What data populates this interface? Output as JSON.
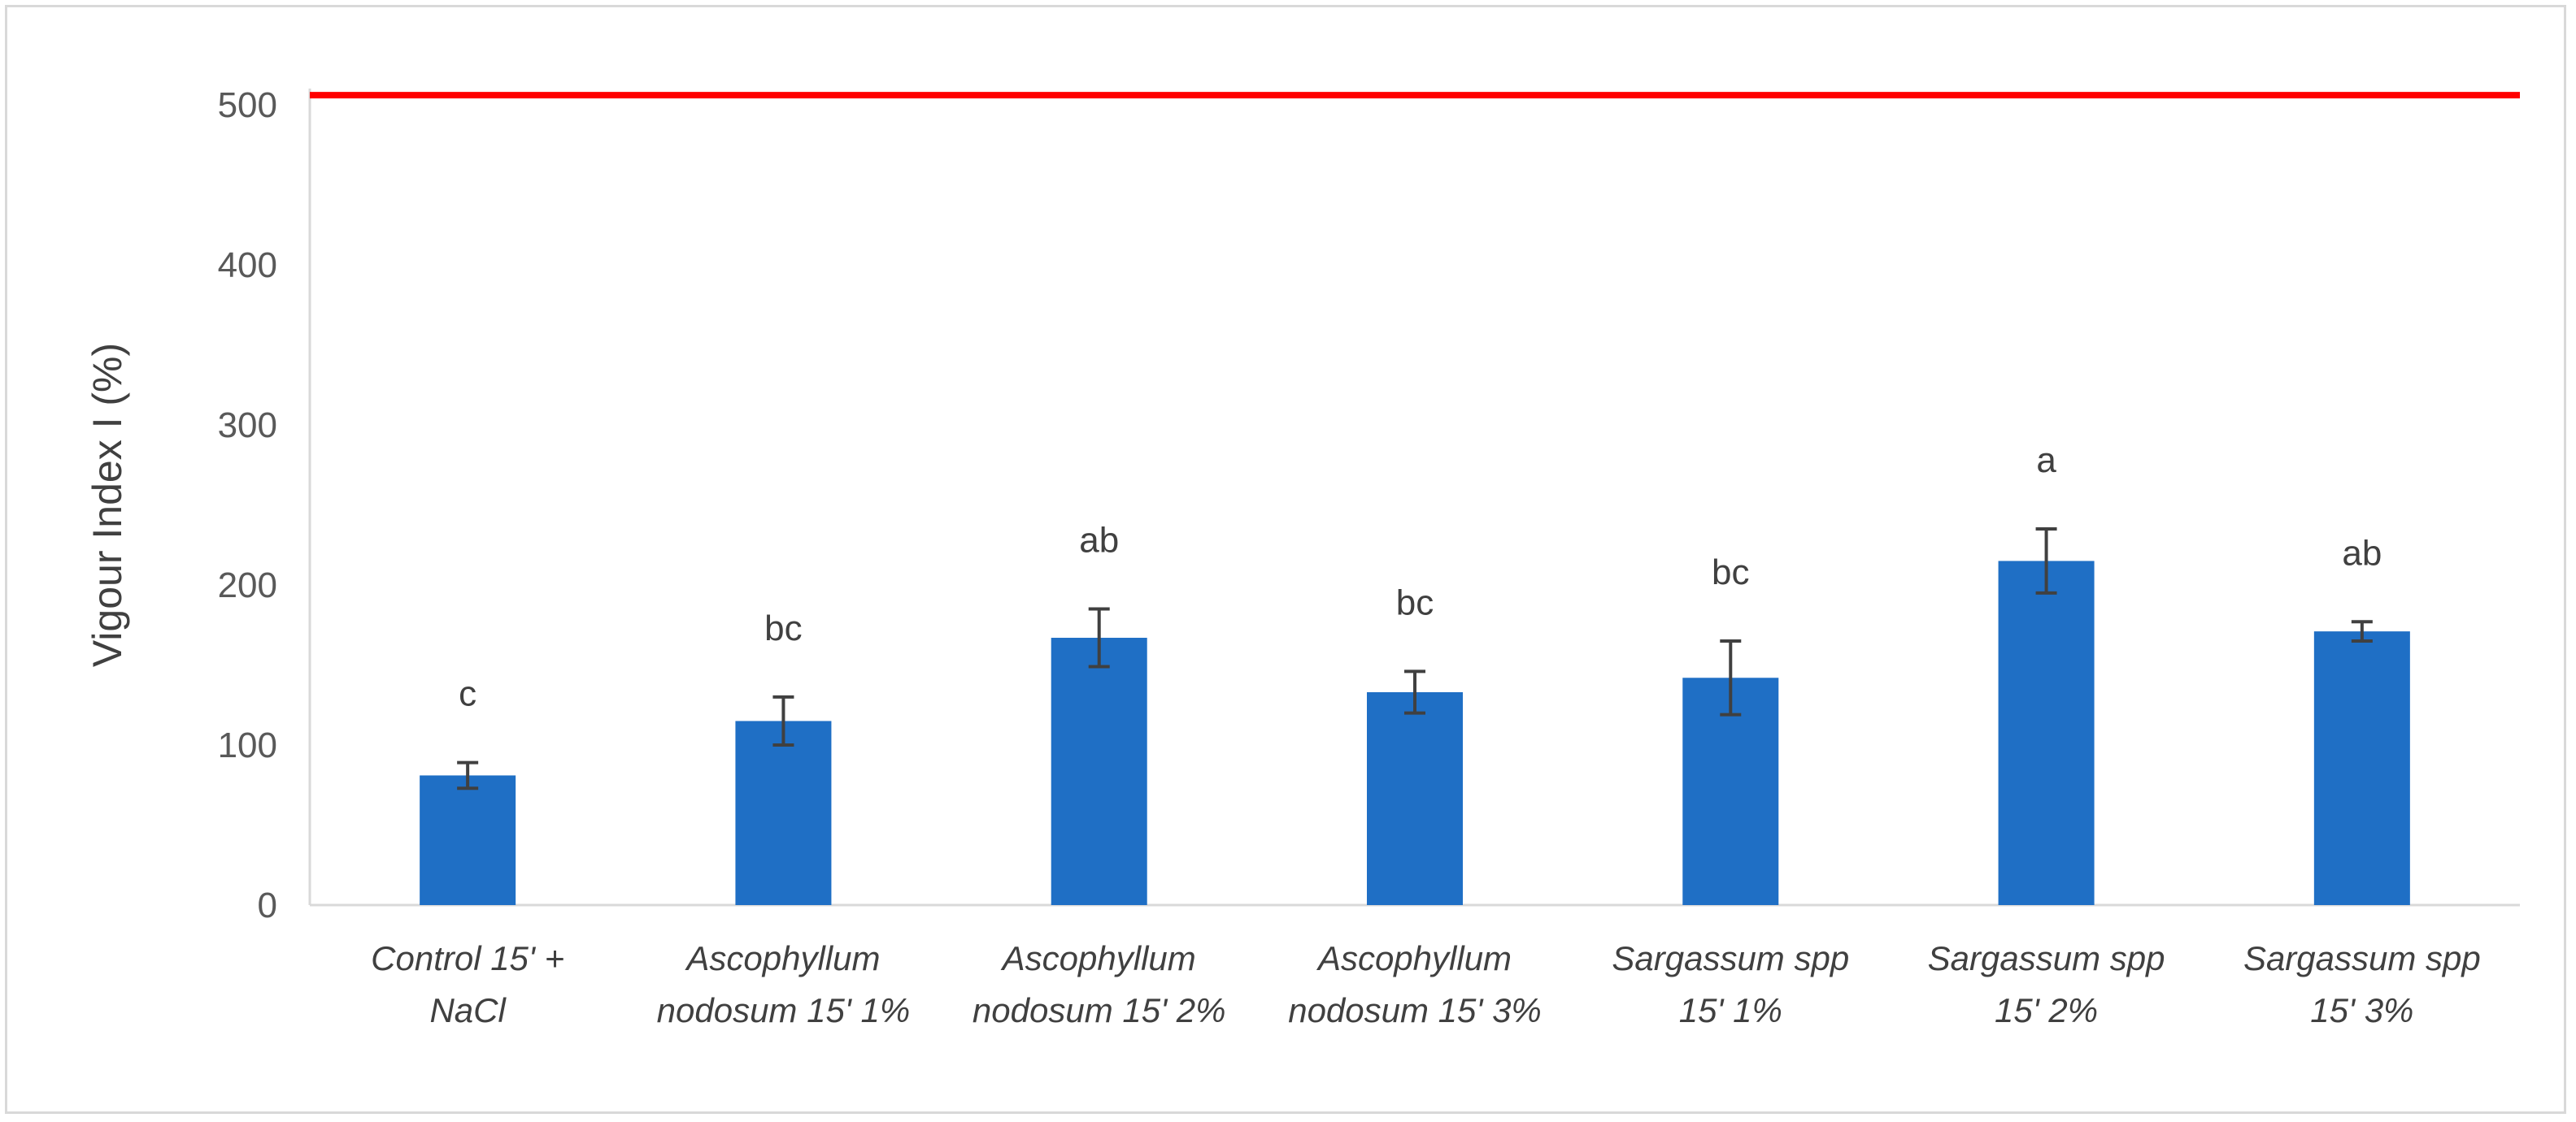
{
  "chart_data": {
    "type": "bar",
    "title": "",
    "xlabel": "",
    "ylabel": "Vigour Index I (%)",
    "ylim": [
      0,
      500
    ],
    "yticks": [
      0,
      100,
      200,
      300,
      400,
      500
    ],
    "grid": false,
    "legend": "none",
    "categories": [
      [
        "Control 15' +",
        "NaCl"
      ],
      [
        "Ascophyllum",
        "nodosum 15' 1%"
      ],
      [
        "Ascophyllum",
        "nodosum 15' 2%"
      ],
      [
        "Ascophyllum",
        "nodosum 15' 3%"
      ],
      [
        "Sargassum spp",
        "15' 1%"
      ],
      [
        "Sargassum spp",
        "15' 2%"
      ],
      [
        "Sargassum spp",
        "15' 3%"
      ]
    ],
    "values": [
      81,
      115,
      167,
      133,
      142,
      215,
      171
    ],
    "errors": [
      8,
      15,
      18,
      13,
      23,
      20,
      6
    ],
    "significance_labels": [
      "c",
      "bc",
      "ab",
      "bc",
      "bc",
      "a",
      "ab"
    ],
    "reference_line": {
      "value": 506
    },
    "colors": {
      "bar": "#1f6fc5",
      "error_bar": "#404040",
      "reference_line": "#ff0000",
      "axis": "#d9d9d9"
    }
  }
}
